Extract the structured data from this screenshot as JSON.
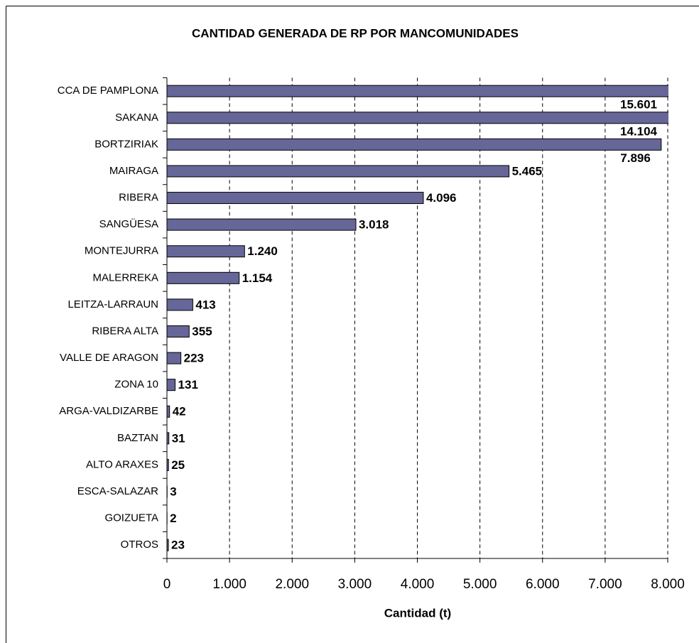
{
  "chart_data": {
    "type": "bar",
    "orientation": "horizontal",
    "title": "CANTIDAD GENERADA DE RP POR MANCOMUNIDADES",
    "x_label": "Cantidad (t)",
    "categories": [
      "CCA DE PAMPLONA",
      "SAKANA",
      "BORTZIRIAK",
      "MAIRAGA",
      "RIBERA",
      "SANGÜESA",
      "MONTEJURRA",
      "MALERREKA",
      "LEITZA-LARRAUN",
      "RIBERA ALTA",
      "VALLE DE ARAGON",
      "ZONA 10",
      "ARGA-VALDIZARBE",
      "BAZTAN",
      "ALTO ARAXES",
      "ESCA-SALAZAR",
      "GOIZUETA",
      "OTROS"
    ],
    "values": [
      15601,
      14104,
      7896,
      5465,
      4096,
      3018,
      1240,
      1154,
      413,
      355,
      223,
      131,
      42,
      31,
      25,
      3,
      2,
      23
    ],
    "value_labels": [
      "15.601",
      "14.104",
      "7.896",
      "5.465",
      "4.096",
      "3.018",
      "1.240",
      "1.154",
      "413",
      "355",
      "223",
      "131",
      "42",
      "31",
      "25",
      "3",
      "2",
      "23"
    ],
    "color": "#666699",
    "xlim": [
      0,
      8000
    ],
    "xticks": [
      0,
      {
        "value": 1000,
        "label": "1.000"
      },
      {
        "value": 2000,
        "label": "2.000"
      },
      {
        "value": 3000,
        "label": "3.000"
      },
      {
        "value": 4000,
        "label": "4.000"
      },
      {
        "value": 5000,
        "label": "5.000"
      },
      {
        "value": 6000,
        "label": "6.000"
      },
      {
        "value": 7000,
        "label": "7.000"
      },
      {
        "value": 8000,
        "label": "8.000"
      }
    ],
    "grid": true
  }
}
